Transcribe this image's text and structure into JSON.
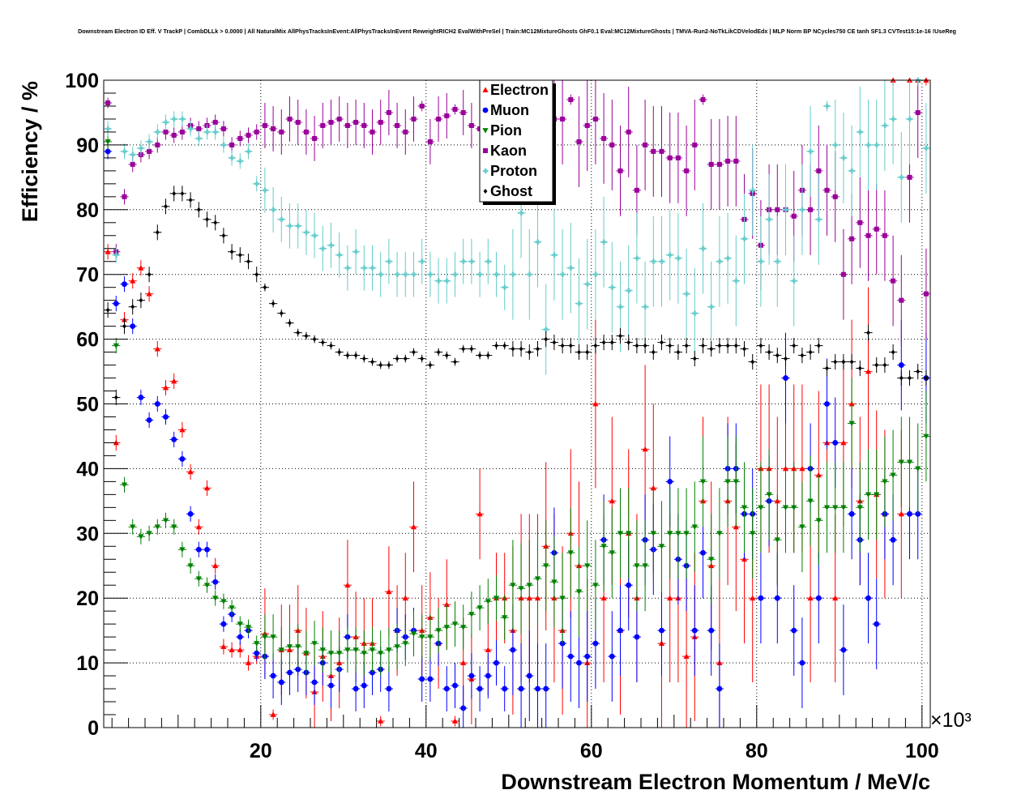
{
  "chart_data": {
    "type": "scatter",
    "title": "Downstream Electron ID Eff. V TrackP | CombDLLk > 0.0000 | All NaturalMix AllPhysTracksInEvent:AllPhysTracksInEvent ReweightRICH2 EvalWithPreSel | Train:MC12MixtureGhosts GhF0.1 Eval:MC12MixtureGhosts | TMVA-Run2-NoTkLikCDVelodEdx | MLP Norm BP NCycles750 CE tanh SF1.3 CVTest15:1e-16 !UseReg",
    "xlabel": "Downstream Electron Momentum / MeV/c",
    "ylabel": "Efficiency / %",
    "x_multiplier": "×10³",
    "xlim": [
      1,
      101
    ],
    "ylim": [
      0,
      100
    ],
    "x_ticks": [
      20,
      40,
      60,
      80,
      100
    ],
    "y_ticks": [
      0,
      10,
      20,
      30,
      40,
      50,
      60,
      70,
      80,
      90,
      100
    ],
    "grid": true,
    "legend_position": "top-center",
    "x": [
      1.5,
      2.5,
      3.5,
      4.5,
      5.5,
      6.5,
      7.5,
      8.5,
      9.5,
      10.5,
      11.5,
      12.5,
      13.5,
      14.5,
      15.5,
      16.5,
      17.5,
      18.5,
      19.5,
      20.5,
      21.5,
      22.5,
      23.5,
      24.5,
      25.5,
      26.5,
      27.5,
      28.5,
      29.5,
      30.5,
      31.5,
      32.5,
      33.5,
      34.5,
      35.5,
      36.5,
      37.5,
      38.5,
      39.5,
      40.5,
      41.5,
      42.5,
      43.5,
      44.5,
      45.5,
      46.5,
      47.5,
      48.5,
      49.5,
      50.5,
      51.5,
      52.5,
      53.5,
      54.5,
      55.5,
      56.5,
      57.5,
      58.5,
      59.5,
      60.5,
      61.5,
      62.5,
      63.5,
      64.5,
      65.5,
      66.5,
      67.5,
      68.5,
      69.5,
      70.5,
      71.5,
      72.5,
      73.5,
      74.5,
      75.5,
      76.5,
      77.5,
      78.5,
      79.5,
      80.5,
      81.5,
      82.5,
      83.5,
      84.5,
      85.5,
      86.5,
      87.5,
      88.5,
      89.5,
      90.5,
      91.5,
      92.5,
      93.5,
      94.5,
      95.5,
      96.5,
      97.5,
      98.5,
      99.5,
      100.5
    ],
    "series": [
      {
        "name": "Electron",
        "color": "#ff0000",
        "marker": "triangle-up",
        "values": [
          73.5,
          44,
          63,
          69,
          71,
          67,
          58.5,
          52.5,
          53.5,
          46,
          39.5,
          31,
          37,
          25,
          12.5,
          12,
          12,
          10,
          11,
          14.5,
          2,
          12,
          12,
          15,
          11.5,
          5.5,
          11,
          8,
          10,
          22,
          14,
          13,
          13,
          1,
          21,
          15,
          20,
          31,
          15,
          17,
          13,
          19,
          1,
          10,
          7.5,
          33,
          12,
          20,
          20,
          15,
          20,
          20,
          20,
          28,
          20,
          15,
          30,
          25,
          10,
          50,
          20,
          35,
          15,
          30,
          20,
          43,
          37,
          13,
          20,
          20,
          11,
          14,
          35,
          25,
          10,
          35,
          31,
          26,
          20,
          40,
          40,
          35,
          40,
          40,
          40,
          20,
          39,
          44,
          20,
          44,
          50,
          35,
          55,
          36,
          33,
          100,
          33,
          100,
          100,
          100
        ]
      },
      {
        "name": "Muon",
        "color": "#0000ff",
        "marker": "circle",
        "values": [
          89,
          65.5,
          68.5,
          62,
          51,
          47.5,
          50,
          48,
          44.5,
          41.5,
          33,
          27.5,
          27.5,
          22.5,
          16,
          17.5,
          14,
          15,
          11.5,
          11,
          8,
          7,
          8.5,
          9,
          8.5,
          7,
          10,
          6.5,
          9,
          14,
          6,
          6.5,
          8.5,
          9,
          6,
          15,
          14,
          15,
          7.5,
          7.5,
          13,
          6,
          6.5,
          3,
          8,
          6,
          8,
          10,
          6,
          12,
          6,
          8,
          6,
          6,
          27,
          13,
          11,
          10,
          11,
          13,
          29,
          11,
          15,
          22,
          14,
          29,
          27.5,
          15,
          38,
          26,
          25,
          15,
          27,
          15,
          6,
          40,
          40,
          33,
          33,
          20,
          35,
          20,
          54,
          15,
          10,
          40,
          20,
          50,
          44,
          12,
          33,
          29,
          20,
          16,
          33,
          29,
          56,
          33,
          33,
          54
        ]
      },
      {
        "name": "Pion",
        "color": "#008000",
        "marker": "triangle-down",
        "values": [
          90.5,
          59,
          37.5,
          31,
          29.5,
          30,
          31,
          32,
          31,
          27.5,
          25,
          23,
          22,
          20,
          19.5,
          18.5,
          16,
          15.5,
          13,
          14,
          14,
          12,
          12.5,
          12.5,
          11.5,
          13,
          12,
          11.5,
          11.5,
          12,
          12,
          11.5,
          12,
          11.5,
          12,
          12.5,
          13,
          14.5,
          14,
          14,
          15,
          15.5,
          16,
          15.5,
          17.5,
          18.5,
          19.5,
          20,
          17,
          22,
          21.5,
          22,
          23,
          25,
          22.5,
          20,
          27,
          21,
          25,
          22,
          28,
          27,
          30,
          30,
          25,
          25,
          30,
          28,
          30,
          30,
          30,
          31,
          38,
          26,
          30,
          38,
          38,
          34,
          30,
          34,
          36,
          29,
          34,
          34,
          31,
          35,
          32,
          34,
          34,
          34,
          47,
          34,
          36,
          36,
          38,
          39,
          41,
          41,
          40,
          45
        ]
      },
      {
        "name": "Kaon",
        "color": "#990099",
        "marker": "square",
        "values": [
          96.5,
          73.5,
          82,
          87,
          88.5,
          89,
          90,
          92,
          91.5,
          92,
          93,
          92.5,
          93,
          93.5,
          92.5,
          90,
          91,
          91.5,
          92,
          93,
          92.5,
          92,
          94,
          93.5,
          92,
          91,
          93,
          93.5,
          94,
          93,
          93.5,
          93,
          92,
          93.5,
          95,
          93,
          92,
          94,
          96,
          90.5,
          94,
          94.5,
          95.5,
          95,
          93,
          92.5,
          93.5,
          94,
          95,
          93,
          94,
          96,
          94,
          94,
          94,
          94,
          97,
          90.5,
          93,
          94,
          91,
          90,
          86,
          92,
          83,
          90,
          89,
          89,
          88,
          88,
          86,
          90,
          97,
          87,
          87,
          87.5,
          87.5,
          78.5,
          82.5,
          74.5,
          80,
          80,
          80,
          79,
          83,
          80,
          86,
          83,
          82,
          70,
          75.5,
          78,
          76,
          77,
          76,
          69,
          66,
          85,
          95,
          67
        ]
      },
      {
        "name": "Proton",
        "color": "#66cccc",
        "marker": "cross",
        "values": [
          92.5,
          73,
          89,
          88.5,
          89.5,
          90.5,
          92,
          93.5,
          94,
          94,
          92.5,
          91,
          92,
          92,
          90,
          88,
          87.5,
          89,
          84,
          83,
          80,
          78.5,
          77.5,
          77.5,
          76.5,
          76,
          74,
          74.5,
          73,
          71,
          73.5,
          71,
          71,
          70,
          72,
          70,
          70,
          70,
          72,
          70,
          69,
          69,
          70,
          72,
          72,
          70,
          72,
          70,
          68,
          70,
          79.5,
          70,
          75,
          61.5,
          73,
          70,
          71,
          65.5,
          68.5,
          70,
          75,
          68,
          65,
          67.5,
          72.5,
          65,
          72,
          72,
          73,
          72.5,
          67,
          64,
          74,
          65,
          72,
          72.5,
          69,
          75.5,
          83,
          72,
          78.5,
          72,
          80,
          69,
          80,
          89,
          78.5,
          96,
          90,
          88,
          86,
          92,
          90,
          90,
          93,
          94,
          85,
          94,
          100,
          89.5
        ]
      },
      {
        "name": "Ghost",
        "color": "#000000",
        "marker": "diamond",
        "values": [
          64.5,
          51,
          62,
          65,
          66,
          70,
          76.5,
          80.5,
          82.5,
          82.5,
          81.5,
          80,
          78.5,
          78,
          76,
          73.5,
          73,
          72,
          70,
          68,
          65.5,
          64,
          62.5,
          61,
          60.5,
          60,
          59.5,
          59,
          58,
          57.5,
          57.5,
          57,
          56.5,
          56,
          56,
          57,
          57,
          58,
          57,
          56,
          58,
          57.5,
          56.5,
          58.5,
          58.5,
          57.5,
          57.5,
          59,
          59,
          58.5,
          58.5,
          58,
          58.5,
          60,
          59.5,
          59,
          59,
          58,
          58,
          59,
          59.5,
          59.5,
          60.5,
          59.5,
          59,
          59,
          58,
          59.5,
          59,
          58,
          59,
          57,
          59,
          58.5,
          59,
          59,
          59,
          58.5,
          56.5,
          59,
          58,
          57.5,
          57,
          59,
          57.5,
          58,
          59,
          55.5,
          56.5,
          56.5,
          56.5,
          55.5,
          61,
          56,
          56,
          58,
          54,
          54,
          55,
          54
        ]
      }
    ]
  }
}
